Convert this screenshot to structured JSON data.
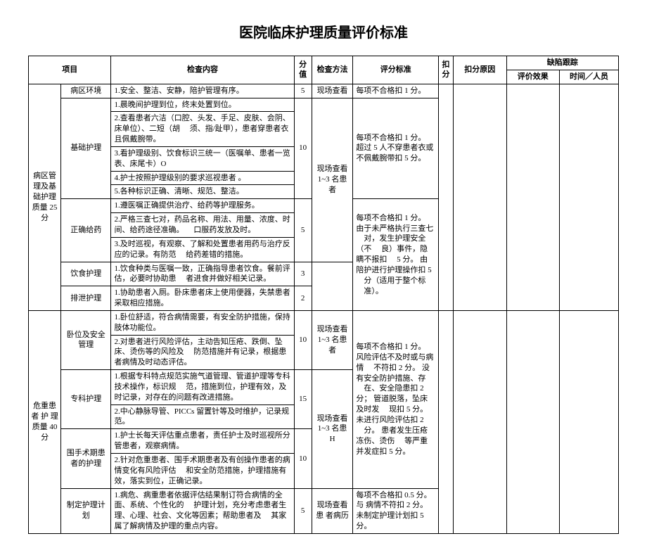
{
  "title": "医院临床护理质量评价标准",
  "headers": {
    "project": "项目",
    "content": "检查内容",
    "score": "分值",
    "method": "检查方法",
    "standard": "评分标准",
    "deduct": "扣分",
    "reason": "扣分原因",
    "track": "缺陷跟踪",
    "effect": "评价效果",
    "time": "时间／人员"
  },
  "cat1": {
    "name": "病区管理及基础护理质量 25 分",
    "r1_item": "病区环境",
    "r1_cont": "1.安全、整洁、安静，陪护管理有序。",
    "r1_score": "5",
    "r1_meth": "现场查看",
    "r1_std": "每项不合格扣 1 分。",
    "r2_item": "基础护理",
    "r2_c1": "1.晨晚间护理到位，终末处置到位。",
    "r2_c2": "2.查看患者六洁（口腔、头发、手足、皮肤、会阴、床单位）、二短（胡\n　须、指/趾甲），患者穿患者衣且佩戴腕带。",
    "r2_c3": "3.看护理级别、饮食标识三统一（医嘱单、患者一览表、床尾卡）O",
    "r2_c4": "4.护士按照护理级别的要求巡视患者 。",
    "r2_c5": "5.各种标识正确、清晰、规范、整洁。",
    "r2_score": "10",
    "r2_std_a": "每项不合格扣 1 分。\n超过 5 人不穿患者衣或不佩戴腕带扣 5 分。",
    "r3_item": "正确给药",
    "r3_c1": "1.遵医嘱正确提供治疗、给药等护理服务。",
    "r3_c2": "2.严格三查七对，药品名称、用法、用量、浓度、时间、给药途径准确。\n　口服药发放及时。",
    "r3_c3": "3.及时巡视，有观察、了解和处置患者用药与治疗反应的记录。有防范\n　给药差错的措施。",
    "r3_score": "5",
    "r3_meth": "现场查看\n1~3 名患者",
    "r3_std": "每项不合格扣 1 分。\n由于未严格执行三查七\n　对，发生护理安全（不\n　良）事件，隐瞒不报扣\n　5 分。\n由陪护进行护理操作扣 5\n　分（适用于整个标\n　准）。",
    "r4_item": "饮食护理",
    "r4_cont": "1.饮食种类与医嘱一致，正确指导患者饮食。餐前评估，必要时协助患\n　者进食并做好相关记录。",
    "r4_score": "3",
    "r5_item": "排泄护理",
    "r5_cont": "1.协助患者入厕。卧床患者床上使用便器，失禁患者采取相应措施。",
    "r5_score": "2"
  },
  "cat2": {
    "name": "危重患者 护 理质量 40 分",
    "r6_item": "卧位及安全管理",
    "r6_c1": "1.卧位舒适，符合病情需要，有安全防护措施，保持肢体功能位。",
    "r6_c2": "2.对患者进行风险评估，主动告知压疮、跌倒、坠床、烫伤等的风险及\n　防范措施并有记录，根据患者病情及时动态评估。",
    "r6_score": "10",
    "r6_meth": "现场查看\n1~3 名患者",
    "r6_std": "每项不合格扣 1 分。\n风险评估不及时或与病情\n　不符扣 2 分。\n没有安全防护措施、存\n　在、安全隐患扣 2 分；\n管道脱落，坠床及时发\n　现扣 5 分。\n未进行风险评估扣 2\n　分。\n患者发生压疮冻伤、烫伤\n　等严重并发症扣 5 分。",
    "r7_item": "专科护理",
    "r7_c1": "1.根据专科特点规范实施气道管理、管道护理等专科技术操作，标识规\n　范，措施到位，护理有效，及时记录，对存在的问题有改进措施。",
    "r7_c2": "2.中心静脉导管、PICCs 留置针等及时维护，记录规范。",
    "r7_score": "15",
    "r7_meth": "现场查看\n1~3 名患\nH",
    "r8_item": "围手术期患者的护理",
    "r8_c1": "1.护士长每天评估重点患者，责任护士及时巡视所分管患者，观察病情。",
    "r8_c2": "2.针对危重患者、围手术期患者及有创操作患者的病情变化有风险评估\n　和安全防范措施，护理措施有效，落实到位，正确记录。",
    "r8_score": "10",
    "r9_item": "制定护理计划",
    "r9_cont": "1.病危、病重患者依据评估结果制订符合病情的全面、系统、个性化的\n　护理计划，充分考虑患者生理、心理、社会、文化等因素；帮助患者及\n　其家属了解病情及护理的重点内容。",
    "r9_score": "5",
    "r9_meth": "现场查看患\n者病历",
    "r9_std": "每项不合格扣 0.5 分。与\n病情不符扣 2 分。\n未制定护理计划扣 5\n分。"
  }
}
